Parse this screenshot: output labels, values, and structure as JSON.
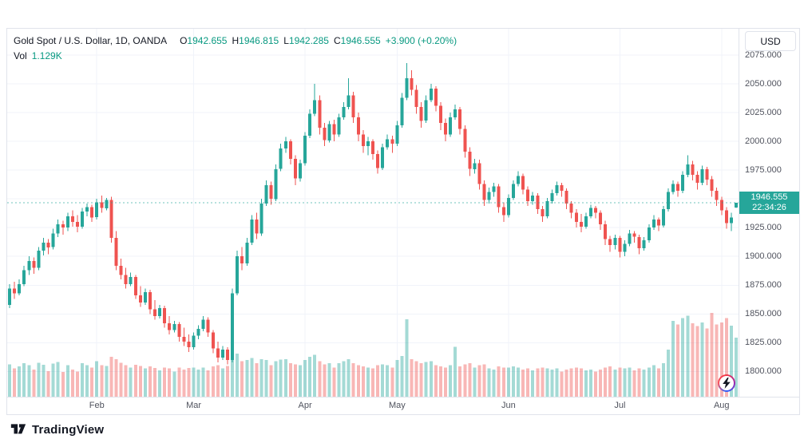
{
  "legend": {
    "symbol": "Gold Spot / U.S. Dollar, 1D, OANDA",
    "open_label": "O",
    "open": "1942.655",
    "high_label": "H",
    "high": "1946.815",
    "low_label": "L",
    "low": "1942.285",
    "close_label": "C",
    "close": "1946.555",
    "change": "+3.900 (+0.20%)",
    "volume_label": "Vol",
    "volume": "1.129K"
  },
  "currency_button": "USD",
  "price_badge": {
    "price": "1946.555",
    "countdown": "22:34:26"
  },
  "footer": {
    "brand": "TradingView"
  },
  "chart_data": {
    "type": "candlestick",
    "title": "Gold Spot / U.S. Dollar, 1D, OANDA",
    "last": {
      "open": 1942.655,
      "high": 1946.815,
      "low": 1942.285,
      "close": 1946.555,
      "change": "+3.900 (+0.20%)",
      "volume": 1129
    },
    "y_range": [
      1778,
      2098
    ],
    "y_ticks": [
      "2075.000",
      "2050.000",
      "2025.000",
      "2000.000",
      "1975.000",
      "1950.000",
      "1925.000",
      "1900.000",
      "1875.000",
      "1850.000",
      "1825.000",
      "1800.000"
    ],
    "x_labels": [
      {
        "text": "Feb",
        "index": 18
      },
      {
        "text": "Mar",
        "index": 38
      },
      {
        "text": "Apr",
        "index": 61
      },
      {
        "text": "May",
        "index": 80
      },
      {
        "text": "Jun",
        "index": 103
      },
      {
        "text": "Jul",
        "index": 126
      },
      {
        "text": "Aug",
        "index": 147
      }
    ],
    "colors": {
      "up": "#26a69a",
      "down": "#ef5350",
      "grid": "#f0f3fa",
      "value_text": "#089981"
    },
    "candles_format": [
      "open",
      "high",
      "low",
      "close",
      "volume"
    ],
    "candles": [
      [
        1858,
        1876,
        1855,
        1872,
        620
      ],
      [
        1872,
        1878,
        1863,
        1868,
        540
      ],
      [
        1868,
        1880,
        1866,
        1876,
        580
      ],
      [
        1876,
        1892,
        1874,
        1888,
        640
      ],
      [
        1888,
        1900,
        1884,
        1896,
        600
      ],
      [
        1896,
        1899,
        1885,
        1890,
        520
      ],
      [
        1890,
        1908,
        1888,
        1905,
        650
      ],
      [
        1905,
        1916,
        1901,
        1912,
        610
      ],
      [
        1912,
        1915,
        1902,
        1908,
        490
      ],
      [
        1908,
        1924,
        1906,
        1920,
        630
      ],
      [
        1920,
        1932,
        1917,
        1928,
        660
      ],
      [
        1928,
        1931,
        1919,
        1925,
        470
      ],
      [
        1925,
        1938,
        1922,
        1935,
        600
      ],
      [
        1935,
        1940,
        1926,
        1930,
        520
      ],
      [
        1930,
        1936,
        1921,
        1926,
        480
      ],
      [
        1926,
        1942,
        1924,
        1939,
        640
      ],
      [
        1939,
        1946,
        1935,
        1943,
        600
      ],
      [
        1943,
        1945,
        1930,
        1934,
        560
      ],
      [
        1934,
        1950,
        1932,
        1947,
        680
      ],
      [
        1947,
        1953,
        1938,
        1942,
        600
      ],
      [
        1942,
        1951,
        1940,
        1949,
        590
      ],
      [
        1949,
        1952,
        1912,
        1916,
        760
      ],
      [
        1916,
        1922,
        1888,
        1892,
        720
      ],
      [
        1892,
        1898,
        1880,
        1884,
        650
      ],
      [
        1884,
        1890,
        1872,
        1876,
        600
      ],
      [
        1876,
        1886,
        1874,
        1882,
        560
      ],
      [
        1882,
        1884,
        1863,
        1866,
        610
      ],
      [
        1866,
        1874,
        1856,
        1860,
        590
      ],
      [
        1860,
        1872,
        1858,
        1869,
        540
      ],
      [
        1869,
        1871,
        1850,
        1854,
        580
      ],
      [
        1854,
        1862,
        1845,
        1848,
        550
      ],
      [
        1848,
        1858,
        1846,
        1855,
        500
      ],
      [
        1855,
        1857,
        1838,
        1842,
        560
      ],
      [
        1842,
        1848,
        1832,
        1836,
        540
      ],
      [
        1836,
        1844,
        1834,
        1841,
        480
      ],
      [
        1841,
        1843,
        1826,
        1830,
        560
      ],
      [
        1830,
        1838,
        1822,
        1826,
        520
      ],
      [
        1826,
        1832,
        1817,
        1821,
        550
      ],
      [
        1821,
        1834,
        1819,
        1831,
        560
      ],
      [
        1831,
        1840,
        1828,
        1837,
        520
      ],
      [
        1837,
        1848,
        1835,
        1845,
        560
      ],
      [
        1845,
        1847,
        1830,
        1834,
        500
      ],
      [
        1834,
        1836,
        1816,
        1820,
        580
      ],
      [
        1820,
        1826,
        1808,
        1812,
        600
      ],
      [
        1812,
        1822,
        1810,
        1819,
        540
      ],
      [
        1819,
        1821,
        1806,
        1810,
        590
      ],
      [
        1810,
        1872,
        1808,
        1868,
        780
      ],
      [
        1868,
        1905,
        1866,
        1900,
        820
      ],
      [
        1900,
        1908,
        1888,
        1894,
        680
      ],
      [
        1894,
        1916,
        1892,
        1912,
        700
      ],
      [
        1912,
        1936,
        1910,
        1932,
        740
      ],
      [
        1932,
        1938,
        1915,
        1920,
        640
      ],
      [
        1920,
        1950,
        1918,
        1946,
        720
      ],
      [
        1946,
        1966,
        1944,
        1962,
        700
      ],
      [
        1962,
        1965,
        1945,
        1950,
        600
      ],
      [
        1950,
        1980,
        1948,
        1976,
        680
      ],
      [
        1976,
        1998,
        1974,
        1994,
        710
      ],
      [
        1994,
        2004,
        1990,
        2000,
        720
      ],
      [
        2000,
        2002,
        1980,
        1985,
        640
      ],
      [
        1985,
        1988,
        1962,
        1968,
        620
      ],
      [
        1968,
        1984,
        1965,
        1981,
        600
      ],
      [
        1981,
        2008,
        1979,
        2005,
        700
      ],
      [
        2005,
        2028,
        2003,
        2024,
        760
      ],
      [
        2024,
        2050,
        2022,
        2036,
        800
      ],
      [
        2036,
        2040,
        2006,
        2012,
        680
      ],
      [
        2012,
        2016,
        1996,
        2001,
        620
      ],
      [
        2001,
        2018,
        1999,
        2015,
        640
      ],
      [
        2015,
        2019,
        2000,
        2006,
        560
      ],
      [
        2006,
        2024,
        2004,
        2021,
        640
      ],
      [
        2021,
        2034,
        2019,
        2030,
        680
      ],
      [
        2030,
        2055,
        2028,
        2040,
        720
      ],
      [
        2040,
        2043,
        2016,
        2021,
        640
      ],
      [
        2021,
        2025,
        2000,
        2006,
        600
      ],
      [
        2006,
        2010,
        1990,
        1996,
        580
      ],
      [
        1996,
        2004,
        1988,
        2000,
        560
      ],
      [
        2000,
        2002,
        1984,
        1989,
        540
      ],
      [
        1989,
        1992,
        1972,
        1977,
        600
      ],
      [
        1977,
        1998,
        1975,
        1995,
        620
      ],
      [
        1995,
        2006,
        1993,
        2002,
        600
      ],
      [
        2002,
        2005,
        1990,
        1998,
        560
      ],
      [
        1998,
        2018,
        1996,
        2014,
        700
      ],
      [
        2014,
        2042,
        2012,
        2038,
        780
      ],
      [
        2038,
        2068,
        2036,
        2055,
        1480
      ],
      [
        2055,
        2062,
        2040,
        2045,
        720
      ],
      [
        2045,
        2049,
        2024,
        2030,
        680
      ],
      [
        2030,
        2034,
        2012,
        2018,
        640
      ],
      [
        2018,
        2040,
        2016,
        2036,
        660
      ],
      [
        2036,
        2050,
        2034,
        2046,
        680
      ],
      [
        2046,
        2048,
        2026,
        2031,
        600
      ],
      [
        2031,
        2034,
        2010,
        2016,
        580
      ],
      [
        2016,
        2020,
        2000,
        2006,
        560
      ],
      [
        2006,
        2025,
        2004,
        2021,
        600
      ],
      [
        2021,
        2032,
        2019,
        2028,
        950
      ],
      [
        2028,
        2030,
        2006,
        2011,
        580
      ],
      [
        2011,
        2014,
        1986,
        1991,
        620
      ],
      [
        1991,
        1995,
        1970,
        1976,
        640
      ],
      [
        1976,
        1985,
        1972,
        1981,
        560
      ],
      [
        1981,
        1984,
        1958,
        1963,
        600
      ],
      [
        1963,
        1966,
        1944,
        1949,
        620
      ],
      [
        1949,
        1960,
        1946,
        1956,
        540
      ],
      [
        1956,
        1964,
        1952,
        1961,
        520
      ],
      [
        1961,
        1963,
        1938,
        1943,
        580
      ],
      [
        1943,
        1947,
        1930,
        1936,
        560
      ],
      [
        1936,
        1954,
        1934,
        1951,
        560
      ],
      [
        1951,
        1966,
        1949,
        1963,
        580
      ],
      [
        1963,
        1974,
        1961,
        1970,
        560
      ],
      [
        1970,
        1972,
        1954,
        1958,
        520
      ],
      [
        1958,
        1961,
        1944,
        1948,
        540
      ],
      [
        1948,
        1956,
        1945,
        1953,
        500
      ],
      [
        1953,
        1955,
        1937,
        1941,
        540
      ],
      [
        1941,
        1944,
        1930,
        1935,
        560
      ],
      [
        1935,
        1951,
        1933,
        1948,
        540
      ],
      [
        1948,
        1958,
        1946,
        1955,
        520
      ],
      [
        1955,
        1965,
        1953,
        1962,
        540
      ],
      [
        1962,
        1964,
        1952,
        1957,
        480
      ],
      [
        1957,
        1959,
        1941,
        1946,
        520
      ],
      [
        1946,
        1948,
        1933,
        1938,
        540
      ],
      [
        1938,
        1941,
        1925,
        1930,
        560
      ],
      [
        1930,
        1937,
        1921,
        1926,
        540
      ],
      [
        1926,
        1938,
        1924,
        1935,
        500
      ],
      [
        1935,
        1945,
        1933,
        1942,
        520
      ],
      [
        1942,
        1944,
        1933,
        1938,
        480
      ],
      [
        1938,
        1940,
        1923,
        1928,
        520
      ],
      [
        1928,
        1931,
        1910,
        1915,
        560
      ],
      [
        1915,
        1918,
        1904,
        1910,
        580
      ],
      [
        1910,
        1919,
        1906,
        1916,
        520
      ],
      [
        1916,
        1918,
        1899,
        1904,
        560
      ],
      [
        1904,
        1914,
        1900,
        1911,
        540
      ],
      [
        1911,
        1923,
        1909,
        1920,
        560
      ],
      [
        1920,
        1922,
        1912,
        1917,
        500
      ],
      [
        1917,
        1919,
        1902,
        1907,
        540
      ],
      [
        1907,
        1917,
        1905,
        1914,
        520
      ],
      [
        1914,
        1928,
        1912,
        1925,
        560
      ],
      [
        1925,
        1936,
        1923,
        1932,
        600
      ],
      [
        1932,
        1934,
        1922,
        1927,
        540
      ],
      [
        1927,
        1944,
        1925,
        1941,
        640
      ],
      [
        1941,
        1959,
        1939,
        1956,
        900
      ],
      [
        1956,
        1966,
        1954,
        1963,
        1450
      ],
      [
        1963,
        1965,
        1952,
        1957,
        1380
      ],
      [
        1957,
        1974,
        1955,
        1971,
        1500
      ],
      [
        1971,
        1988,
        1969,
        1980,
        1550
      ],
      [
        1980,
        1983,
        1966,
        1971,
        1400
      ],
      [
        1971,
        1974,
        1958,
        1964,
        1350
      ],
      [
        1964,
        1979,
        1962,
        1976,
        1420
      ],
      [
        1976,
        1978,
        1962,
        1967,
        1300
      ],
      [
        1967,
        1970,
        1952,
        1957,
        1600
      ],
      [
        1957,
        1960,
        1944,
        1949,
        1380
      ],
      [
        1949,
        1952,
        1936,
        1940,
        1420
      ],
      [
        1940,
        1943,
        1924,
        1929,
        1500
      ],
      [
        1929,
        1938,
        1922,
        1934,
        1360
      ],
      [
        1942.655,
        1946.815,
        1942.285,
        1946.555,
        1129
      ]
    ]
  }
}
